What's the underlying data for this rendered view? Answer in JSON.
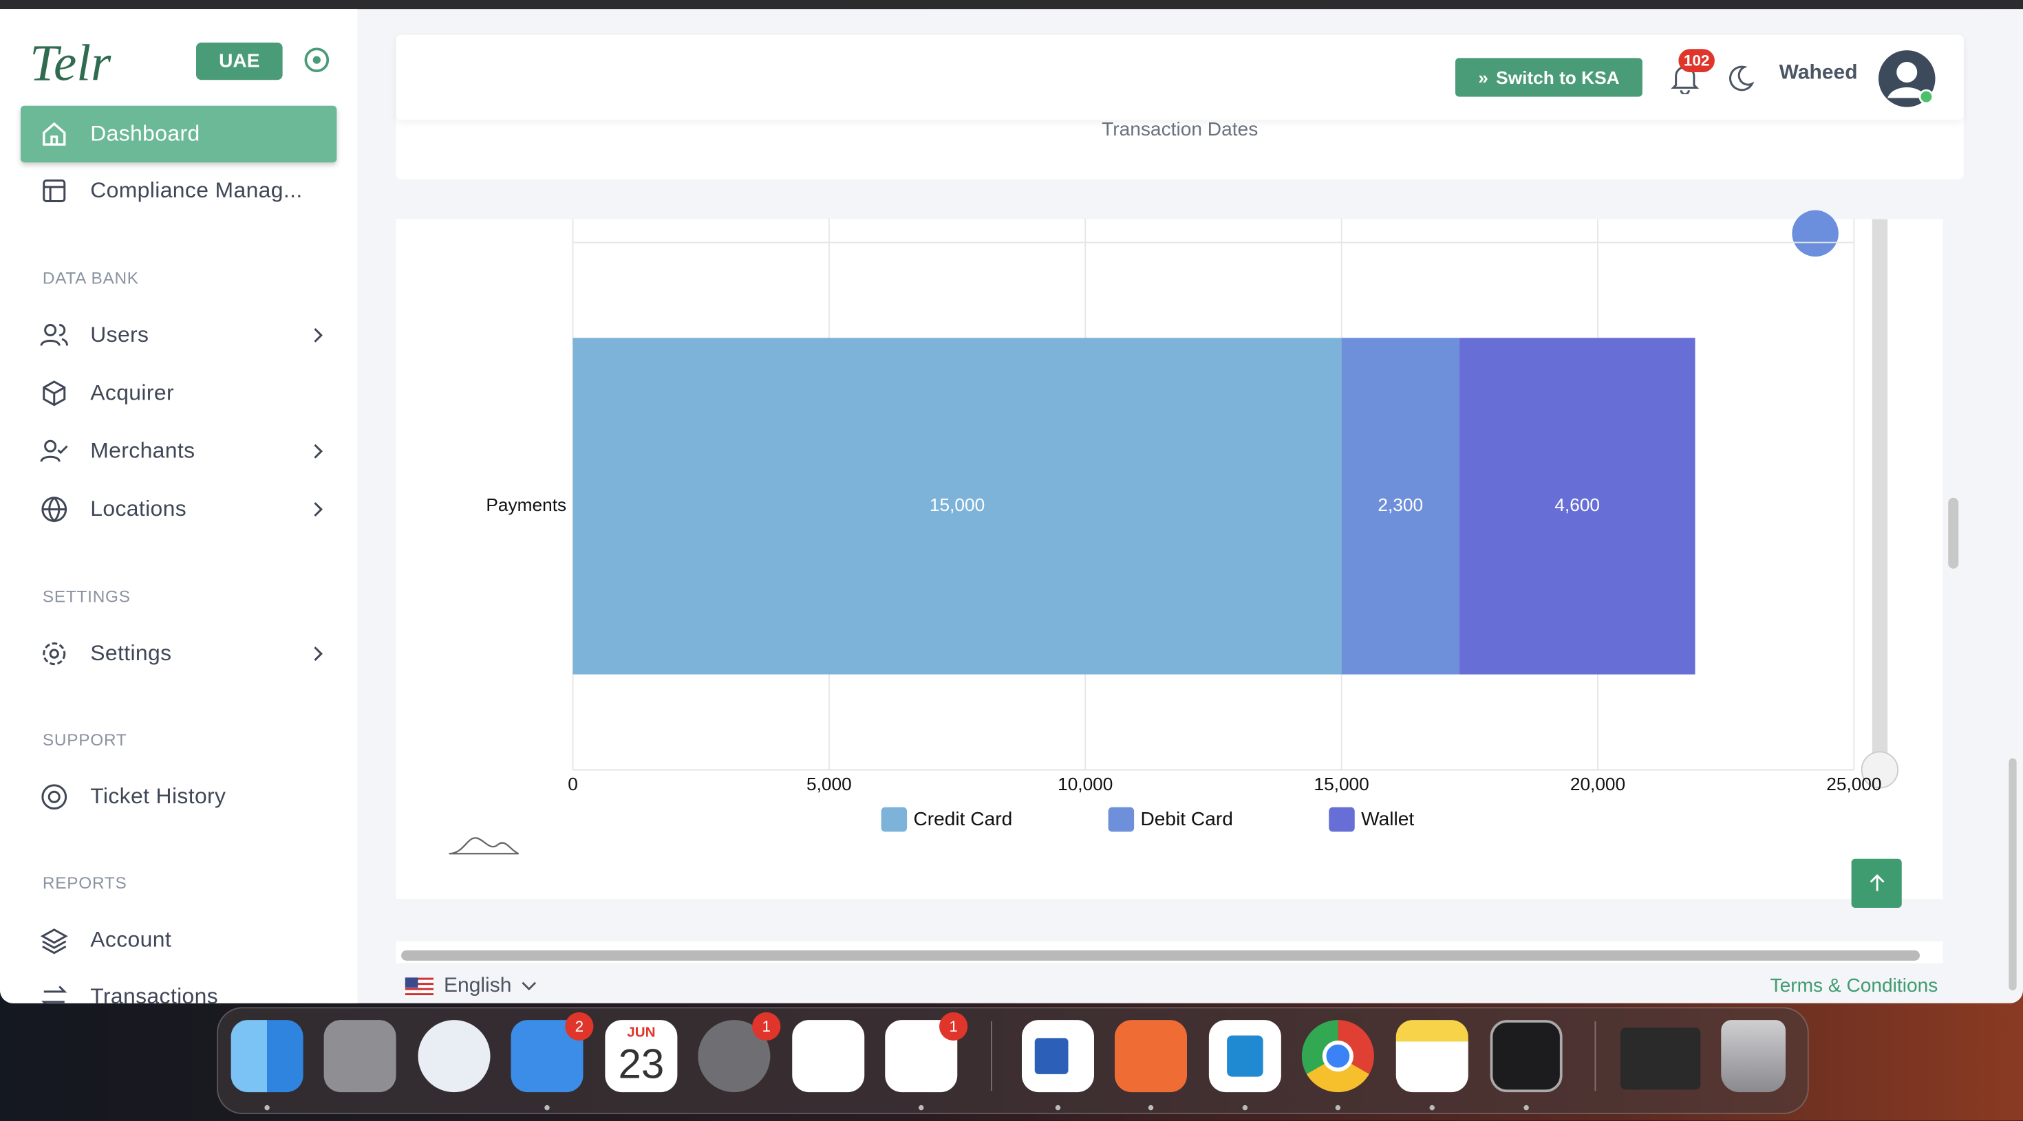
{
  "sidebar": {
    "brand": "Telr",
    "region": "UAE",
    "items": [
      "Dashboard",
      "Compliance Manag..."
    ],
    "sections": [
      {
        "heading": "DATA BANK",
        "items": [
          "Users",
          "Acquirer",
          "Merchants",
          "Locations"
        ]
      },
      {
        "heading": "SETTINGS",
        "items": [
          "Settings"
        ]
      },
      {
        "heading": "SUPPORT",
        "items": [
          "Ticket History"
        ]
      },
      {
        "heading": "REPORTS",
        "items": [
          "Account",
          "Transactions"
        ]
      }
    ]
  },
  "header": {
    "switch_button": "Switch to KSA",
    "notifications": "102",
    "user": "Waheed"
  },
  "filter_card": {
    "label": "Transaction Dates"
  },
  "chart_data": {
    "type": "stacked-bar-horizontal",
    "categories": [
      "Payments"
    ],
    "series": [
      {
        "name": "Credit Card",
        "color": "#7db3d9",
        "values": [
          15000
        ],
        "value_labels": [
          "15,000"
        ]
      },
      {
        "name": "Debit Card",
        "color": "#6e8fd9",
        "values": [
          2300
        ],
        "value_labels": [
          "2,300"
        ]
      },
      {
        "name": "Wallet",
        "color": "#676fd6",
        "values": [
          4600
        ],
        "value_labels": [
          "4,600"
        ]
      }
    ],
    "xlim": [
      0,
      25000
    ],
    "xticks": [
      0,
      {
        "value": 5000,
        "label": "5,000"
      },
      {
        "value": 10000,
        "label": "10,000"
      },
      {
        "value": 15000,
        "label": "15,000"
      },
      {
        "value": 20000,
        "label": "20,000"
      },
      {
        "value": 25000,
        "label": "25,000"
      }
    ],
    "grid": true,
    "legend": "bottom"
  },
  "footer": {
    "language": "English",
    "terms": "Terms & Conditions"
  },
  "dock": {
    "mail_badge": "2",
    "calendar_month": "JUN",
    "calendar_day": "23",
    "settings_badge": "1",
    "slack_badge": "1"
  }
}
